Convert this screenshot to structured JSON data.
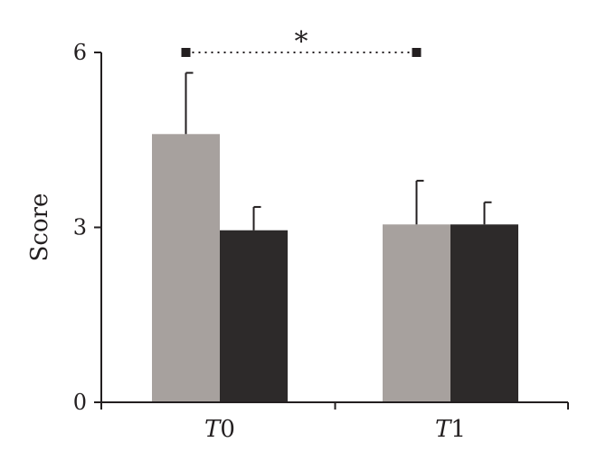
{
  "chart_data": {
    "type": "bar",
    "title": "",
    "xlabel": "",
    "ylabel": "Score",
    "ylim": [
      0,
      6
    ],
    "yticks": [
      0,
      3,
      6
    ],
    "grid": false,
    "legend": "none",
    "categories": [
      {
        "italic": "T",
        "rest": "0"
      },
      {
        "italic": "T",
        "rest": "1"
      }
    ],
    "series": [
      {
        "color": "#a7a19e",
        "values": [
          4.6,
          3.05
        ],
        "errors": [
          1.05,
          0.75
        ]
      },
      {
        "color": "#2d2a2a",
        "values": [
          2.95,
          3.05
        ],
        "errors": [
          0.4,
          0.38
        ]
      }
    ],
    "significance": {
      "label": "*",
      "y": 6.0,
      "from": {
        "category": 0,
        "series": 0
      },
      "to": {
        "category": 1,
        "series": 0
      }
    },
    "colors": {
      "axis": "#231f20",
      "text": "#231f20"
    }
  }
}
